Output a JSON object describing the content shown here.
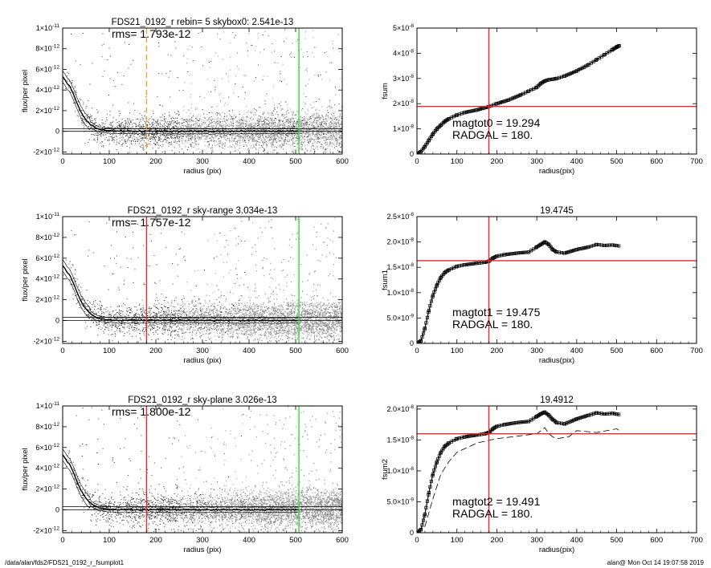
{
  "colors": {
    "red": "#e8262b",
    "green": "#2ee02e",
    "orange": "#f0a22e",
    "gray": "#a8a8a8",
    "dark_gray": "#8c8c8c"
  },
  "footer": {
    "left": "/data/alan/fds2/FDS21_0192_r_fsumplot1",
    "right": "alan@  Mon Oct 14 19:07:58 2019"
  },
  "chart_data": [
    {
      "type": "scatter",
      "title": "FDS21_0192_r rebin= 5    skybox0:  2.541e-13",
      "annotation": "rms= 1.793e-12",
      "xlabel": "radius (pix)",
      "ylabel": "flux/per pixel",
      "xlim": [
        0,
        600
      ],
      "ylim": [
        -2.2e-12,
        1e-11
      ],
      "xticks": [
        "0",
        "100",
        "200",
        "300",
        "400",
        "500",
        "600"
      ],
      "yticks": [
        {
          "v": -2e-12,
          "m": "-2",
          "e": "-12"
        },
        {
          "v": 0,
          "m": "0",
          "e": ""
        },
        {
          "v": 2e-12,
          "m": "2",
          "e": "-12"
        },
        {
          "v": 4e-12,
          "m": "4",
          "e": "-12"
        },
        {
          "v": 6e-12,
          "m": "6",
          "e": "-12"
        },
        {
          "v": 8e-12,
          "m": "8",
          "e": "-12"
        },
        {
          "v": 1e-11,
          "m": "1",
          "e": "-11"
        }
      ],
      "vlines": [
        {
          "x": 180,
          "color": "orange",
          "dash": true
        },
        {
          "x": 507,
          "color": "green",
          "dash": false
        }
      ],
      "profile": [
        [
          0,
          5.3e-12
        ],
        [
          5,
          5e-12
        ],
        [
          10,
          4.6e-12
        ],
        [
          15,
          4.4e-12
        ],
        [
          20,
          3.9e-12
        ],
        [
          25,
          3.4e-12
        ],
        [
          30,
          2.8e-12
        ],
        [
          35,
          2.3e-12
        ],
        [
          40,
          1.8e-12
        ],
        [
          50,
          1.1e-12
        ],
        [
          60,
          6.5e-13
        ],
        [
          70,
          3.5e-13
        ],
        [
          80,
          1.8e-13
        ],
        [
          90,
          1e-13
        ],
        [
          100,
          6e-14
        ],
        [
          120,
          3e-14
        ],
        [
          150,
          2e-14
        ],
        [
          200,
          1.5e-14
        ],
        [
          300,
          1e-14
        ],
        [
          400,
          1e-14
        ],
        [
          500,
          1e-14
        ]
      ],
      "hlines": [
        2.5e-13,
        0
      ],
      "mid_band_start": 250,
      "dark_band_start": null
    },
    {
      "type": "line",
      "title": "",
      "annotation": [
        "magtot0 =  19.294",
        "RADGAL =     180."
      ],
      "xlabel": "radius(pix)",
      "ylabel": "fsum",
      "xlim": [
        0,
        700
      ],
      "ylim": [
        0,
        5e-08
      ],
      "xticks": [
        "0",
        "100",
        "200",
        "300",
        "400",
        "500",
        "600",
        "700"
      ],
      "yticks": [
        {
          "v": 0,
          "m": "0",
          "e": ""
        },
        {
          "v": 1e-08,
          "m": "1",
          "e": "-8"
        },
        {
          "v": 2e-08,
          "m": "2",
          "e": "-8"
        },
        {
          "v": 3e-08,
          "m": "3",
          "e": "-8"
        },
        {
          "v": 4e-08,
          "m": "4",
          "e": "-8"
        },
        {
          "v": 5e-08,
          "m": "5",
          "e": "-8"
        }
      ],
      "x": [
        0,
        10,
        20,
        30,
        40,
        50,
        60,
        70,
        80,
        100,
        120,
        150,
        180,
        200,
        230,
        260,
        280,
        300,
        310,
        320,
        330,
        340,
        350,
        370,
        400,
        430,
        450,
        470,
        490,
        500,
        507
      ],
      "y": [
        0,
        1e-09,
        3e-09,
        5.5e-09,
        8e-09,
        1e-08,
        1.15e-08,
        1.3e-08,
        1.4e-08,
        1.55e-08,
        1.65e-08,
        1.75e-08,
        1.88e-08,
        2e-08,
        2.15e-08,
        2.35e-08,
        2.5e-08,
        2.65e-08,
        2.8e-08,
        2.9e-08,
        2.95e-08,
        2.97e-08,
        3e-08,
        3.1e-08,
        3.3e-08,
        3.55e-08,
        3.75e-08,
        3.95e-08,
        4.15e-08,
        4.25e-08,
        4.3e-08
      ],
      "dashed": null,
      "vline": 180,
      "hline": 1.89e-08
    },
    {
      "type": "scatter",
      "title": "FDS21_0192_r sky-range  3.034e-13",
      "annotation": "rms= 1.757e-12",
      "xlabel": "radius (pix)",
      "ylabel": "flux/per pixel",
      "xlim": [
        0,
        600
      ],
      "ylim": [
        -2.2e-12,
        1e-11
      ],
      "xticks": [
        "0",
        "100",
        "200",
        "300",
        "400",
        "500",
        "600"
      ],
      "yticks": [
        {
          "v": -2e-12,
          "m": "-2",
          "e": "-12"
        },
        {
          "v": 0,
          "m": "0",
          "e": ""
        },
        {
          "v": 2e-12,
          "m": "2",
          "e": "-12"
        },
        {
          "v": 4e-12,
          "m": "4",
          "e": "-12"
        },
        {
          "v": 6e-12,
          "m": "6",
          "e": "-12"
        },
        {
          "v": 8e-12,
          "m": "8",
          "e": "-12"
        },
        {
          "v": 1e-11,
          "m": "1",
          "e": "-11"
        }
      ],
      "vlines": [
        {
          "x": 180,
          "color": "red",
          "dash": false
        },
        {
          "x": 507,
          "color": "green",
          "dash": false
        }
      ],
      "profile": [
        [
          0,
          5.3e-12
        ],
        [
          5,
          5e-12
        ],
        [
          10,
          4.6e-12
        ],
        [
          15,
          4.4e-12
        ],
        [
          20,
          3.9e-12
        ],
        [
          25,
          3.4e-12
        ],
        [
          30,
          2.8e-12
        ],
        [
          35,
          2.3e-12
        ],
        [
          40,
          1.8e-12
        ],
        [
          50,
          1.1e-12
        ],
        [
          60,
          6.5e-13
        ],
        [
          70,
          3.5e-13
        ],
        [
          80,
          1.8e-13
        ],
        [
          90,
          1e-13
        ],
        [
          100,
          6e-14
        ],
        [
          120,
          3e-14
        ],
        [
          150,
          2e-14
        ],
        [
          200,
          1.5e-14
        ],
        [
          300,
          1e-14
        ],
        [
          400,
          1e-14
        ],
        [
          500,
          1e-14
        ]
      ],
      "hlines": [
        3e-13,
        0
      ],
      "mid_band_start": 250,
      "dark_band_start": 400
    },
    {
      "type": "line",
      "title": "19.4745",
      "annotation": [
        "magtot1 =  19.475",
        "RADGAL =     180."
      ],
      "xlabel": "radius(pix)",
      "ylabel": "fsum1",
      "xlim": [
        0,
        700
      ],
      "ylim": [
        0,
        2.5e-08
      ],
      "xticks": [
        "0",
        "100",
        "200",
        "300",
        "400",
        "500",
        "600",
        "700"
      ],
      "yticks": [
        {
          "v": 0,
          "m": "0",
          "e": ""
        },
        {
          "v": 5e-09,
          "m": "5.0",
          "e": "-9"
        },
        {
          "v": 1e-08,
          "m": "1.0",
          "e": "-8"
        },
        {
          "v": 1.5e-08,
          "m": "1.5",
          "e": "-8"
        },
        {
          "v": 2e-08,
          "m": "2.0",
          "e": "-8"
        },
        {
          "v": 2.5e-08,
          "m": "2.5",
          "e": "-8"
        }
      ],
      "x": [
        0,
        10,
        20,
        30,
        40,
        50,
        60,
        70,
        80,
        100,
        120,
        150,
        170,
        180,
        190,
        200,
        220,
        250,
        280,
        300,
        310,
        320,
        330,
        340,
        350,
        370,
        400,
        430,
        450,
        470,
        490,
        507
      ],
      "y": [
        0,
        5e-10,
        3e-09,
        6.5e-09,
        9.5e-09,
        1.15e-08,
        1.3e-08,
        1.4e-08,
        1.45e-08,
        1.52e-08,
        1.55e-08,
        1.58e-08,
        1.6e-08,
        1.62e-08,
        1.68e-08,
        1.72e-08,
        1.75e-08,
        1.78e-08,
        1.8e-08,
        1.9e-08,
        1.95e-08,
        2e-08,
        1.95e-08,
        1.85e-08,
        1.8e-08,
        1.78e-08,
        1.85e-08,
        1.9e-08,
        1.95e-08,
        1.93e-08,
        1.94e-08,
        1.92e-08
      ],
      "dashed": null,
      "vline": 180,
      "hline": 1.63e-08
    },
    {
      "type": "scatter",
      "title": "FDS21_0192_r sky-plane  3.026e-13",
      "annotation": "rms= 1.800e-12",
      "xlabel": "radius (pix)",
      "ylabel": "flux/per pixel",
      "xlim": [
        0,
        600
      ],
      "ylim": [
        -2.2e-12,
        1e-11
      ],
      "xticks": [
        "0",
        "100",
        "200",
        "300",
        "400",
        "500",
        "600"
      ],
      "yticks": [
        {
          "v": -2e-12,
          "m": "-2",
          "e": "-12"
        },
        {
          "v": 0,
          "m": "0",
          "e": ""
        },
        {
          "v": 2e-12,
          "m": "2",
          "e": "-12"
        },
        {
          "v": 4e-12,
          "m": "4",
          "e": "-12"
        },
        {
          "v": 6e-12,
          "m": "6",
          "e": "-12"
        },
        {
          "v": 8e-12,
          "m": "8",
          "e": "-12"
        },
        {
          "v": 1e-11,
          "m": "1",
          "e": "-11"
        }
      ],
      "vlines": [
        {
          "x": 180,
          "color": "red",
          "dash": false
        },
        {
          "x": 507,
          "color": "green",
          "dash": false
        }
      ],
      "profile": [
        [
          0,
          5.3e-12
        ],
        [
          5,
          5e-12
        ],
        [
          10,
          4.6e-12
        ],
        [
          15,
          4.4e-12
        ],
        [
          20,
          3.9e-12
        ],
        [
          25,
          3.4e-12
        ],
        [
          30,
          2.8e-12
        ],
        [
          35,
          2.3e-12
        ],
        [
          40,
          1.8e-12
        ],
        [
          50,
          1.1e-12
        ],
        [
          60,
          6.5e-13
        ],
        [
          70,
          3.5e-13
        ],
        [
          80,
          1.8e-13
        ],
        [
          90,
          1e-13
        ],
        [
          100,
          6e-14
        ],
        [
          120,
          3e-14
        ],
        [
          150,
          2e-14
        ],
        [
          200,
          1.5e-14
        ],
        [
          300,
          1e-14
        ],
        [
          400,
          1e-14
        ],
        [
          500,
          1e-14
        ]
      ],
      "hlines": [
        3e-13,
        0
      ],
      "mid_band_start": 250,
      "dark_band_start": 400
    },
    {
      "type": "line",
      "title": "19.4912",
      "annotation": [
        "magtot2 =  19.491",
        "RADGAL =     180."
      ],
      "xlabel": "radius(pix)",
      "ylabel": "fsum2",
      "xlim": [
        0,
        700
      ],
      "ylim": [
        0,
        2.05e-08
      ],
      "xticks": [
        "0",
        "100",
        "200",
        "300",
        "400",
        "500",
        "600",
        "700"
      ],
      "yticks": [
        {
          "v": 0,
          "m": "0",
          "e": ""
        },
        {
          "v": 5e-09,
          "m": "5.0",
          "e": "-9"
        },
        {
          "v": 1e-08,
          "m": "1.0",
          "e": "-8"
        },
        {
          "v": 1.5e-08,
          "m": "1.5",
          "e": "-8"
        },
        {
          "v": 2e-08,
          "m": "2.0",
          "e": "-8"
        }
      ],
      "x": [
        0,
        10,
        20,
        30,
        40,
        50,
        60,
        70,
        80,
        100,
        120,
        150,
        170,
        180,
        190,
        200,
        220,
        250,
        280,
        300,
        310,
        320,
        330,
        340,
        350,
        370,
        400,
        430,
        450,
        470,
        490,
        507
      ],
      "y": [
        0,
        5e-10,
        3e-09,
        6.5e-09,
        9.5e-09,
        1.15e-08,
        1.3e-08,
        1.4e-08,
        1.45e-08,
        1.52e-08,
        1.55e-08,
        1.58e-08,
        1.6e-08,
        1.62e-08,
        1.68e-08,
        1.72e-08,
        1.75e-08,
        1.78e-08,
        1.8e-08,
        1.88e-08,
        1.92e-08,
        1.95e-08,
        1.9e-08,
        1.83e-08,
        1.78e-08,
        1.76e-08,
        1.84e-08,
        1.9e-08,
        1.94e-08,
        1.92e-08,
        1.93e-08,
        1.91e-08
      ],
      "dashed": {
        "x": [
          0,
          20,
          40,
          60,
          80,
          100,
          150,
          200,
          250,
          300,
          320,
          330,
          340,
          350,
          380,
          400,
          450,
          500,
          507
        ],
        "y": [
          0,
          1e-09,
          5.5e-09,
          9.5e-09,
          1.15e-08,
          1.3e-08,
          1.45e-08,
          1.52e-08,
          1.56e-08,
          1.6e-08,
          1.7e-08,
          1.6e-08,
          1.55e-08,
          1.52e-08,
          1.55e-08,
          1.65e-08,
          1.62e-08,
          1.68e-08,
          1.65e-08
        ]
      },
      "vline": 180,
      "hline": 1.6e-08
    }
  ]
}
